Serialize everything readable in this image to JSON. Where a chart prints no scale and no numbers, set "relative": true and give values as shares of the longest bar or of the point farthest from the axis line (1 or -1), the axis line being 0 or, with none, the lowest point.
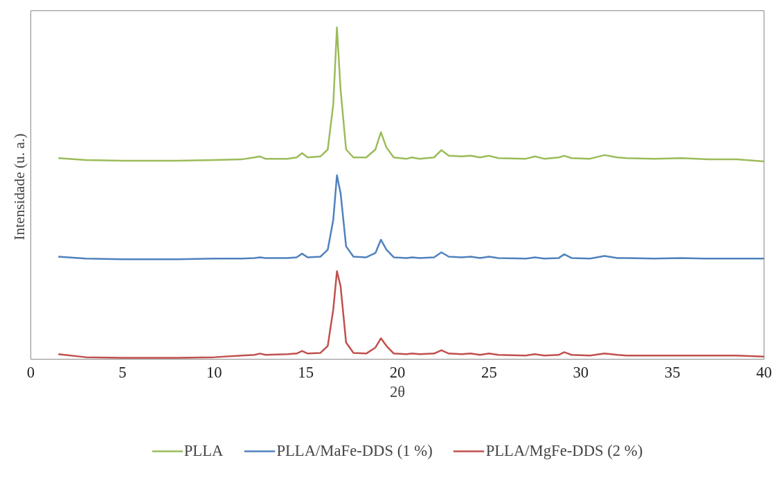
{
  "chart_data": {
    "type": "line",
    "relative": true,
    "xlabel": "2θ",
    "ylabel": "Intensidade  (u. a.)",
    "x": [
      1.5,
      3,
      5,
      8,
      10,
      11.5,
      12.2,
      12.5,
      12.8,
      14,
      14.5,
      14.8,
      15.1,
      15.8,
      16.2,
      16.5,
      16.7,
      16.9,
      17.2,
      17.6,
      18.3,
      18.8,
      19.1,
      19.4,
      19.8,
      20.5,
      20.8,
      21.2,
      22.0,
      22.4,
      22.8,
      23.5,
      24,
      24.5,
      25,
      25.5,
      27,
      27.5,
      28,
      28.8,
      29.1,
      29.5,
      30.5,
      31.3,
      32,
      32.5,
      34,
      35.5,
      37,
      38.5,
      40
    ],
    "xlim": [
      0,
      40
    ],
    "xticks": [
      0,
      5,
      10,
      15,
      20,
      25,
      30,
      35,
      40
    ],
    "grid": false,
    "legend": "bottom",
    "line_style": "solid",
    "marker": "none",
    "series": [
      {
        "name": "PLLA",
        "color": "#9bbb59",
        "values": [
          0.606,
          0.6,
          0.598,
          0.598,
          0.6,
          0.602,
          0.608,
          0.611,
          0.604,
          0.604,
          0.608,
          0.621,
          0.608,
          0.611,
          0.632,
          0.768,
          1.0,
          0.811,
          0.632,
          0.608,
          0.608,
          0.632,
          0.684,
          0.638,
          0.608,
          0.604,
          0.608,
          0.604,
          0.608,
          0.63,
          0.613,
          0.611,
          0.613,
          0.608,
          0.613,
          0.606,
          0.604,
          0.611,
          0.604,
          0.608,
          0.613,
          0.606,
          0.604,
          0.615,
          0.608,
          0.606,
          0.604,
          0.606,
          0.602,
          0.602,
          0.596
        ]
      },
      {
        "name": "PLLA/MaFe-DDS (1 %)",
        "color": "#4f81bd",
        "values": [
          0.309,
          0.303,
          0.301,
          0.301,
          0.303,
          0.303,
          0.305,
          0.307,
          0.305,
          0.305,
          0.307,
          0.318,
          0.307,
          0.309,
          0.33,
          0.42,
          0.554,
          0.5,
          0.34,
          0.309,
          0.307,
          0.32,
          0.36,
          0.33,
          0.307,
          0.305,
          0.307,
          0.305,
          0.307,
          0.322,
          0.309,
          0.307,
          0.309,
          0.305,
          0.309,
          0.305,
          0.303,
          0.307,
          0.303,
          0.305,
          0.316,
          0.305,
          0.303,
          0.311,
          0.305,
          0.305,
          0.303,
          0.305,
          0.303,
          0.303,
          0.303
        ]
      },
      {
        "name": "PLLA/MgFe-DDS (2 %)",
        "color": "#c0504d",
        "values": [
          0.015,
          0.006,
          0.004,
          0.004,
          0.006,
          0.011,
          0.013,
          0.017,
          0.013,
          0.015,
          0.017,
          0.025,
          0.017,
          0.019,
          0.04,
          0.15,
          0.265,
          0.22,
          0.05,
          0.019,
          0.017,
          0.035,
          0.063,
          0.04,
          0.017,
          0.015,
          0.017,
          0.015,
          0.017,
          0.027,
          0.017,
          0.015,
          0.017,
          0.013,
          0.017,
          0.013,
          0.011,
          0.015,
          0.011,
          0.013,
          0.021,
          0.013,
          0.011,
          0.017,
          0.013,
          0.011,
          0.011,
          0.011,
          0.011,
          0.011,
          0.008
        ]
      }
    ]
  }
}
